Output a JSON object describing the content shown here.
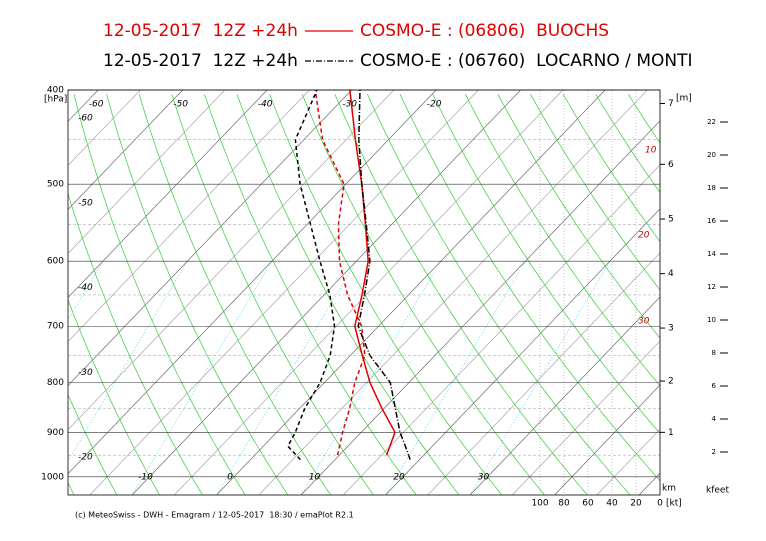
{
  "chart_data": {
    "type": "emagram",
    "ylabel": "[hPa]",
    "ylim": [
      400,
      1044
    ],
    "yticks": [
      400,
      500,
      600,
      700,
      800,
      900,
      1000
    ],
    "isotherm_labels_bottom": [
      -10,
      0,
      10,
      20,
      30
    ],
    "isotherm_labels_top": [
      -60,
      -50,
      -40,
      -30,
      -20
    ],
    "adiabat_labels": [
      -60,
      -50,
      -40,
      -30,
      -20
    ],
    "series": [
      {
        "run": "12-05-2017  12Z +24h",
        "name": "COSMO-E : (06806)  BUOCHS",
        "color": "#e00000",
        "dash": "solid",
        "pressure": [
          950,
          900,
          850,
          800,
          750,
          700,
          650,
          600,
          550,
          500,
          450,
          400
        ],
        "temperature": [
          15.6,
          14,
          9.7,
          5.4,
          1.4,
          -2.8,
          -5.5,
          -8.6,
          -13.1,
          -18.1,
          -23.9,
          -30.2
        ],
        "dewpoint": [
          9.8,
          7.8,
          5.9,
          3.6,
          1.7,
          -2.0,
          -7.2,
          -12.0,
          -16.3,
          -20.2,
          -27.8,
          -34.3
        ]
      },
      {
        "run": "12-05-2017  12Z +24h",
        "name": "COSMO-E : (06760)  LOCARNO / MONTI",
        "color": "#000000",
        "dash": "dashdot",
        "pressure": [
          960,
          930,
          900,
          850,
          800,
          750,
          700,
          650,
          600,
          550,
          500,
          450,
          400
        ],
        "temperature": [
          18.9,
          16.8,
          14.6,
          11.3,
          7.8,
          2.3,
          -2.4,
          -5.2,
          -8.4,
          -13.0,
          -18.1,
          -23.5,
          -29.0
        ],
        "dewpoint": [
          5.9,
          2.9,
          2.2,
          0.6,
          -0.5,
          -2.4,
          -5.2,
          -9.3,
          -14.3,
          -19.6,
          -25.4,
          -31.0,
          -34.1
        ]
      }
    ],
    "wind_axis": {
      "label": "[kt]",
      "ticks": [
        100,
        80,
        60,
        40,
        20,
        0
      ],
      "lim": [
        100,
        0
      ]
    },
    "km_axis": {
      "label": "[m]",
      "bottom_label": "km",
      "ticks": [
        1,
        2,
        3,
        4,
        5,
        6,
        7
      ],
      "pressure": [
        900,
        797,
        703,
        618,
        543,
        477,
        413
      ]
    },
    "kfeet_axis": {
      "label": "kfeet",
      "ticks": [
        2,
        4,
        6,
        8,
        10,
        12,
        14,
        16,
        18,
        20,
        22
      ],
      "lim": [
        0,
        24
      ]
    },
    "footer": "(c) MeteoSwiss - DWH - Emagram / 12-05-2017  18:30 / emaPlot R2.1"
  }
}
